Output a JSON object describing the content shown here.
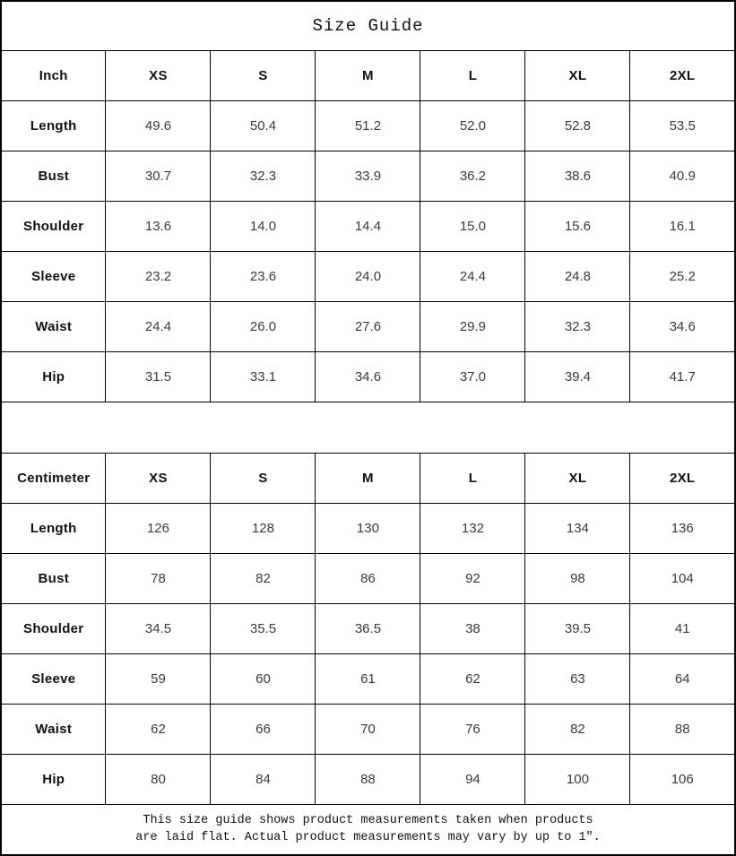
{
  "page": {
    "title": "Size Guide"
  },
  "tables": [
    {
      "unit": "Inch",
      "sizes": [
        "XS",
        "S",
        "M",
        "L",
        "XL",
        "2XL"
      ],
      "rows": [
        {
          "label": "Length",
          "values": [
            "49.6",
            "50.4",
            "51.2",
            "52.0",
            "52.8",
            "53.5"
          ]
        },
        {
          "label": "Bust",
          "values": [
            "30.7",
            "32.3",
            "33.9",
            "36.2",
            "38.6",
            "40.9"
          ]
        },
        {
          "label": "Shoulder",
          "values": [
            "13.6",
            "14.0",
            "14.4",
            "15.0",
            "15.6",
            "16.1"
          ]
        },
        {
          "label": "Sleeve",
          "values": [
            "23.2",
            "23.6",
            "24.0",
            "24.4",
            "24.8",
            "25.2"
          ]
        },
        {
          "label": "Waist",
          "values": [
            "24.4",
            "26.0",
            "27.6",
            "29.9",
            "32.3",
            "34.6"
          ]
        },
        {
          "label": "Hip",
          "values": [
            "31.5",
            "33.1",
            "34.6",
            "37.0",
            "39.4",
            "41.7"
          ]
        }
      ]
    },
    {
      "unit": "Centimeter",
      "sizes": [
        "XS",
        "S",
        "M",
        "L",
        "XL",
        "2XL"
      ],
      "rows": [
        {
          "label": "Length",
          "values": [
            "126",
            "128",
            "130",
            "132",
            "134",
            "136"
          ]
        },
        {
          "label": "Bust",
          "values": [
            "78",
            "82",
            "86",
            "92",
            "98",
            "104"
          ]
        },
        {
          "label": "Shoulder",
          "values": [
            "34.5",
            "35.5",
            "36.5",
            "38",
            "39.5",
            "41"
          ]
        },
        {
          "label": "Sleeve",
          "values": [
            "59",
            "60",
            "61",
            "62",
            "63",
            "64"
          ]
        },
        {
          "label": "Waist",
          "values": [
            "62",
            "66",
            "70",
            "76",
            "82",
            "88"
          ]
        },
        {
          "label": "Hip",
          "values": [
            "80",
            "84",
            "88",
            "94",
            "100",
            "106"
          ]
        }
      ]
    }
  ],
  "footer": {
    "line1": "This size guide shows product measurements taken when products",
    "line2": "are laid flat. Actual product measurements may vary by up to 1″."
  },
  "colors": {
    "border": "#000000",
    "label_text": "#111111",
    "value_text": "#3a3a3a",
    "background": "#ffffff"
  }
}
